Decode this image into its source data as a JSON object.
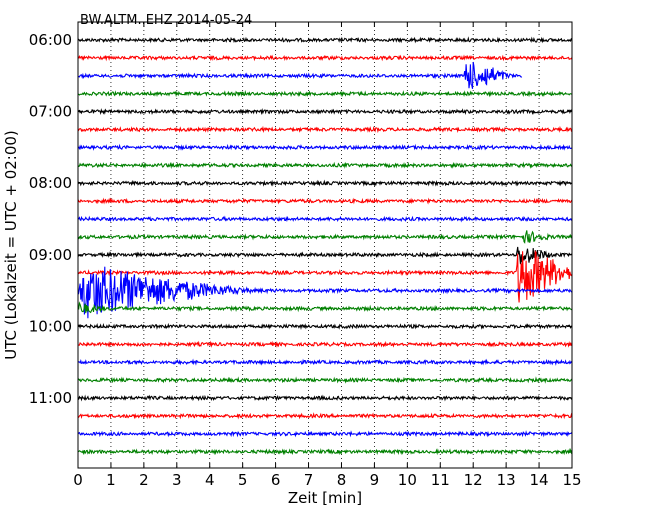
{
  "chart_data": {
    "type": "line",
    "title": "BW.ALTM..EHZ 2014-05-24",
    "xlabel": "Zeit  [min]",
    "ylabel": "UTC (Lokalzeit = UTC + 02:00)",
    "xlim": [
      0,
      15
    ],
    "x_ticks": [
      0,
      1,
      2,
      3,
      4,
      5,
      6,
      7,
      8,
      9,
      10,
      11,
      12,
      13,
      14,
      15
    ],
    "x_tick_labels": [
      "0",
      "1",
      "2",
      "3",
      "4",
      "5",
      "6",
      "7",
      "8",
      "9",
      "10",
      "11",
      "12",
      "13",
      "14",
      "15"
    ],
    "y_tick_labels": [
      "06:00",
      "07:00",
      "08:00",
      "09:00",
      "10:00",
      "11:00"
    ],
    "grid": "vertical dotted",
    "line_colors": [
      "#000000",
      "#ff0000",
      "#0000ff",
      "#008000"
    ],
    "series": [
      {
        "start": "06:00",
        "color": "#000000",
        "events": [
          {
            "t": 13.9,
            "amp": 0.5,
            "dur": 0.15
          }
        ]
      },
      {
        "start": "06:15",
        "color": "#ff0000",
        "events": []
      },
      {
        "start": "06:30",
        "color": "#0000ff",
        "events": [
          {
            "t": 11.7,
            "amp": 2.2,
            "dur": 1.8
          },
          {
            "t": 12.3,
            "amp": 1.6,
            "dur": 1.2
          }
        ]
      },
      {
        "start": "06:45",
        "color": "#008000",
        "events": []
      },
      {
        "start": "07:00",
        "color": "#000000",
        "events": []
      },
      {
        "start": "07:15",
        "color": "#ff0000",
        "events": [
          {
            "t": 5.35,
            "amp": 0.45,
            "dur": 0.1
          }
        ]
      },
      {
        "start": "07:30",
        "color": "#0000ff",
        "events": []
      },
      {
        "start": "07:45",
        "color": "#008000",
        "events": []
      },
      {
        "start": "08:00",
        "color": "#000000",
        "events": []
      },
      {
        "start": "08:15",
        "color": "#ff0000",
        "events": []
      },
      {
        "start": "08:30",
        "color": "#0000ff",
        "events": []
      },
      {
        "start": "08:45",
        "color": "#008000",
        "events": [
          {
            "t": 13.5,
            "amp": 0.9,
            "dur": 1.5
          }
        ]
      },
      {
        "start": "09:00",
        "color": "#000000",
        "events": [
          {
            "t": 13.3,
            "amp": 1.5,
            "dur": 1.7
          }
        ]
      },
      {
        "start": "09:15",
        "color": "#ff0000",
        "events": [
          {
            "t": 13.3,
            "amp": 4.2,
            "dur": 2.5
          }
        ]
      },
      {
        "start": "09:30",
        "color": "#0000ff",
        "events": [
          {
            "t": 0.0,
            "amp": 3.6,
            "dur": 6.5
          }
        ]
      },
      {
        "start": "09:45",
        "color": "#008000",
        "events": [
          {
            "t": 0.0,
            "amp": 0.8,
            "dur": 1.5
          }
        ]
      },
      {
        "start": "10:00",
        "color": "#000000",
        "events": []
      },
      {
        "start": "10:15",
        "color": "#ff0000",
        "events": []
      },
      {
        "start": "10:30",
        "color": "#0000ff",
        "events": []
      },
      {
        "start": "10:45",
        "color": "#008000",
        "events": []
      },
      {
        "start": "11:00",
        "color": "#000000",
        "events": []
      },
      {
        "start": "11:15",
        "color": "#ff0000",
        "events": []
      },
      {
        "start": "11:30",
        "color": "#0000ff",
        "events": []
      },
      {
        "start": "11:45",
        "color": "#008000",
        "events": []
      }
    ]
  }
}
